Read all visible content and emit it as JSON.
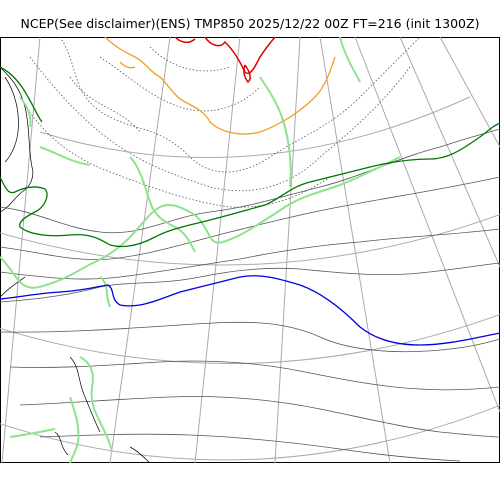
{
  "header": {
    "title": "NCEP(See disclaimer)(ENS) TMP850 2025/12/22 00Z FT=216 (init 1300Z)"
  },
  "map": {
    "colors": {
      "background": "#ffffff",
      "coast": "#000000",
      "graticule": "#aaaaaa",
      "isotherm": "#555555",
      "green_thin": "#8fe28f",
      "green_dark": "#007700",
      "blue": "#0000dd",
      "orange": "#f0a020",
      "red": "#dd0000"
    }
  }
}
